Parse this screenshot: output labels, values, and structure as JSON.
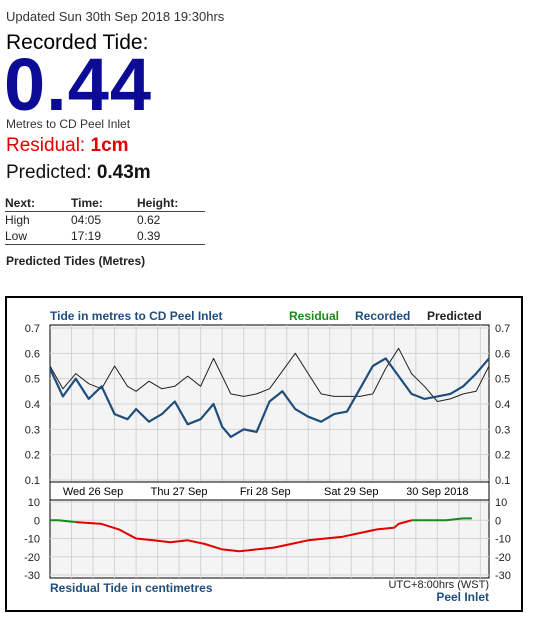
{
  "header": {
    "updated": "Updated Sun 30th Sep 2018 19:30hrs",
    "recorded_label": "Recorded Tide:",
    "recorded_value": "0.44",
    "units": "Metres to CD Peel Inlet",
    "residual_label": "Residual: ",
    "residual_value": "1cm",
    "predicted_label": "Predicted: ",
    "predicted_value": "0.43m"
  },
  "next_table": {
    "headers": [
      "Next:",
      "Time:",
      "Height:"
    ],
    "rows": [
      [
        "High",
        "04:05",
        "0.62"
      ],
      [
        "Low",
        "17:19",
        "0.39"
      ]
    ],
    "footer": "Predicted Tides (Metres)"
  },
  "colors": {
    "big_value": "#0b0b96",
    "residual_text": "#e00000",
    "recorded": "#1f4e7d",
    "predicted": "#222222",
    "residual_neg": "#e00000",
    "residual_pos": "#1a8a1a"
  },
  "chart_data": [
    {
      "type": "line",
      "title": "Tide in metres to CD Peel Inlet",
      "legend": [
        "Residual",
        "Recorded",
        "Predicted"
      ],
      "legend_colors": [
        "#1a8a1a",
        "#1f4e7d",
        "#222222"
      ],
      "x_tick_labels": [
        "Wed 26 Sep",
        "Thu 27 Sep",
        "Fri 28 Sep",
        "Sat 29 Sep",
        "30 Sep 2018"
      ],
      "x_range_days": [
        0,
        5.1
      ],
      "ylim": [
        0.1,
        0.7
      ],
      "yticks": [
        "0.7",
        "0.6",
        "0.5",
        "0.4",
        "0.3",
        "0.2",
        "0.1"
      ],
      "grid": true,
      "series": [
        {
          "name": "Predicted",
          "x": [
            0,
            0.15,
            0.3,
            0.45,
            0.6,
            0.75,
            0.9,
            1.0,
            1.15,
            1.3,
            1.45,
            1.6,
            1.75,
            1.9,
            2.0,
            2.1,
            2.25,
            2.4,
            2.55,
            2.7,
            2.85,
            3.0,
            3.15,
            3.3,
            3.45,
            3.6,
            3.75,
            3.9,
            4.05,
            4.2,
            4.35,
            4.5,
            4.65,
            4.8,
            4.95,
            5.1
          ],
          "y": [
            0.55,
            0.46,
            0.52,
            0.48,
            0.46,
            0.55,
            0.47,
            0.45,
            0.49,
            0.46,
            0.47,
            0.51,
            0.47,
            0.58,
            0.51,
            0.44,
            0.43,
            0.44,
            0.46,
            0.53,
            0.6,
            0.52,
            0.44,
            0.43,
            0.43,
            0.43,
            0.44,
            0.54,
            0.62,
            0.52,
            0.47,
            0.41,
            0.42,
            0.44,
            0.45,
            0.55
          ]
        },
        {
          "name": "Recorded",
          "x": [
            0,
            0.15,
            0.3,
            0.45,
            0.6,
            0.75,
            0.9,
            1.0,
            1.15,
            1.3,
            1.45,
            1.6,
            1.75,
            1.9,
            2.0,
            2.1,
            2.25,
            2.4,
            2.55,
            2.7,
            2.85,
            3.0,
            3.15,
            3.3,
            3.45,
            3.6,
            3.75,
            3.9,
            4.05,
            4.2,
            4.35,
            4.5,
            4.65,
            4.8,
            4.95,
            5.1
          ],
          "y": [
            0.54,
            0.43,
            0.5,
            0.42,
            0.47,
            0.36,
            0.34,
            0.38,
            0.33,
            0.36,
            0.41,
            0.32,
            0.34,
            0.4,
            0.31,
            0.27,
            0.3,
            0.29,
            0.41,
            0.45,
            0.38,
            0.35,
            0.33,
            0.36,
            0.37,
            0.46,
            0.55,
            0.58,
            0.51,
            0.44,
            0.42,
            0.43,
            0.44,
            0.47,
            0.52,
            0.58
          ]
        }
      ]
    },
    {
      "type": "line",
      "title": "Residual Tide in centimetres",
      "ylim": [
        -30,
        10
      ],
      "yticks": [
        "10",
        "0",
        "-10",
        "-20",
        "-30"
      ],
      "annotation_1": "UTC+8:00hrs (WST)",
      "annotation_2": "Peel Inlet",
      "series": [
        {
          "name": "Residual",
          "x": [
            0,
            0.1,
            0.3,
            0.6,
            0.8,
            1.0,
            1.2,
            1.4,
            1.6,
            1.8,
            2.0,
            2.2,
            2.4,
            2.6,
            2.8,
            3.0,
            3.2,
            3.4,
            3.6,
            3.8,
            4.0,
            4.05,
            4.2,
            4.4,
            4.6,
            4.8,
            4.9
          ],
          "y": [
            0,
            0,
            -1,
            -2,
            -5,
            -10,
            -11,
            -12,
            -11,
            -13,
            -16,
            -17,
            -16,
            -15,
            -13,
            -11,
            -10,
            -9,
            -7,
            -5,
            -4,
            -2,
            0,
            0,
            0,
            1,
            1
          ]
        }
      ]
    }
  ]
}
